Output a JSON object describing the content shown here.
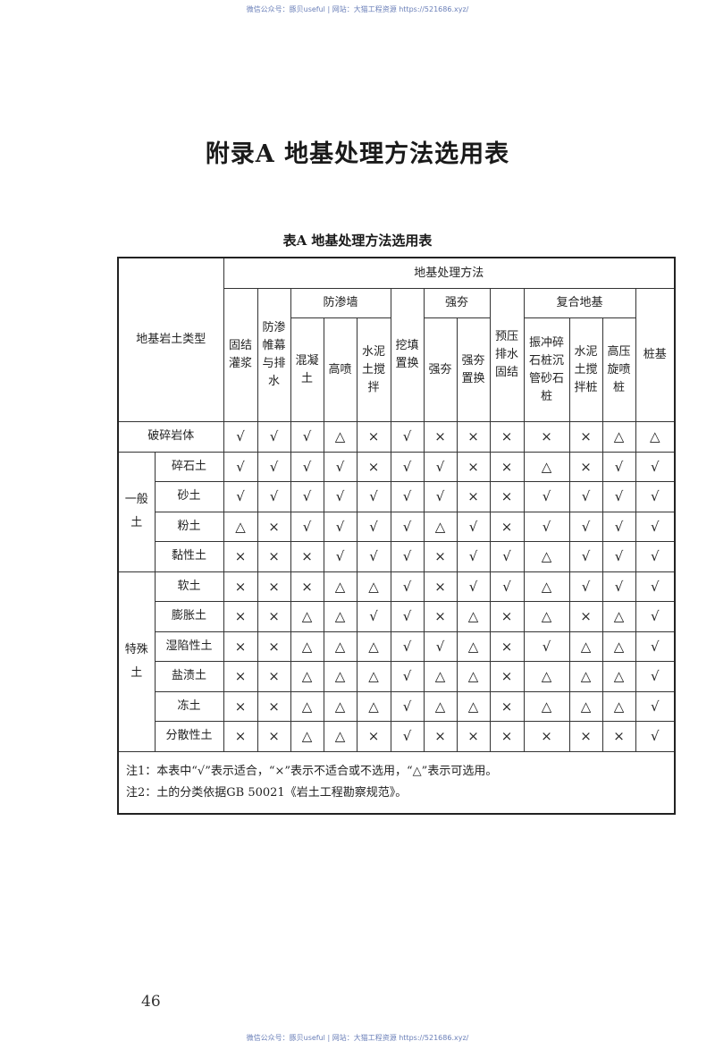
{
  "watermark": "微信公众号：豚贝useful | 网站：大猫工程资源 https://521686.xyz/",
  "title": "附录A  地基处理方法选用表",
  "table_caption": "表A  地基处理方法选用表",
  "table": {
    "soil_type_header": "地基岩土类型",
    "methods_header": "地基处理方法",
    "groups": {
      "cutoff_wall": "防渗墙",
      "dynamic": "强夯",
      "composite": "复合地基"
    },
    "columns": [
      "固结灌浆",
      "防渗帷幕与排水",
      "混凝土",
      "高喷",
      "水泥土搅拌",
      "挖填置换",
      "强夯",
      "强夯置换",
      "预压排水固结",
      "振冲碎石桩沉管砂石桩",
      "水泥土搅拌桩",
      "高压旋喷桩",
      "桩基"
    ],
    "categories": {
      "general": "一般土",
      "special": "特殊土"
    },
    "rows": [
      {
        "name": "破碎岩体",
        "values": [
          "√",
          "√",
          "√",
          "△",
          "×",
          "√",
          "×",
          "×",
          "×",
          "×",
          "×",
          "△",
          "△"
        ]
      },
      {
        "name": "碎石土",
        "values": [
          "√",
          "√",
          "√",
          "√",
          "×",
          "√",
          "√",
          "×",
          "×",
          "△",
          "×",
          "√",
          "√"
        ]
      },
      {
        "name": "砂土",
        "values": [
          "√",
          "√",
          "√",
          "√",
          "√",
          "√",
          "√",
          "×",
          "×",
          "√",
          "√",
          "√",
          "√"
        ]
      },
      {
        "name": "粉土",
        "values": [
          "△",
          "×",
          "√",
          "√",
          "√",
          "√",
          "△",
          "√",
          "×",
          "√",
          "√",
          "√",
          "√"
        ]
      },
      {
        "name": "黏性土",
        "values": [
          "×",
          "×",
          "×",
          "√",
          "√",
          "√",
          "×",
          "√",
          "√",
          "△",
          "√",
          "√",
          "√"
        ]
      },
      {
        "name": "软土",
        "values": [
          "×",
          "×",
          "×",
          "△",
          "△",
          "√",
          "×",
          "√",
          "√",
          "△",
          "√",
          "√",
          "√"
        ]
      },
      {
        "name": "膨胀土",
        "values": [
          "×",
          "×",
          "△",
          "△",
          "√",
          "√",
          "×",
          "△",
          "×",
          "△",
          "×",
          "△",
          "√"
        ]
      },
      {
        "name": "湿陷性土",
        "values": [
          "×",
          "×",
          "△",
          "△",
          "△",
          "√",
          "√",
          "△",
          "×",
          "√",
          "△",
          "△",
          "√"
        ]
      },
      {
        "name": "盐渍土",
        "values": [
          "×",
          "×",
          "△",
          "△",
          "△",
          "√",
          "△",
          "△",
          "×",
          "△",
          "△",
          "△",
          "√"
        ]
      },
      {
        "name": "冻土",
        "values": [
          "×",
          "×",
          "△",
          "△",
          "△",
          "√",
          "△",
          "△",
          "×",
          "△",
          "△",
          "△",
          "√"
        ]
      },
      {
        "name": "分散性土",
        "values": [
          "×",
          "×",
          "△",
          "△",
          "×",
          "√",
          "×",
          "×",
          "×",
          "×",
          "×",
          "×",
          "√"
        ]
      }
    ],
    "notes": [
      "注1：本表中“√”表示适合，“×”表示不适合或不选用，“△”表示可选用。",
      "注2：土的分类依据GB 50021《岩土工程勘察规范》。"
    ]
  },
  "page_number": "46"
}
